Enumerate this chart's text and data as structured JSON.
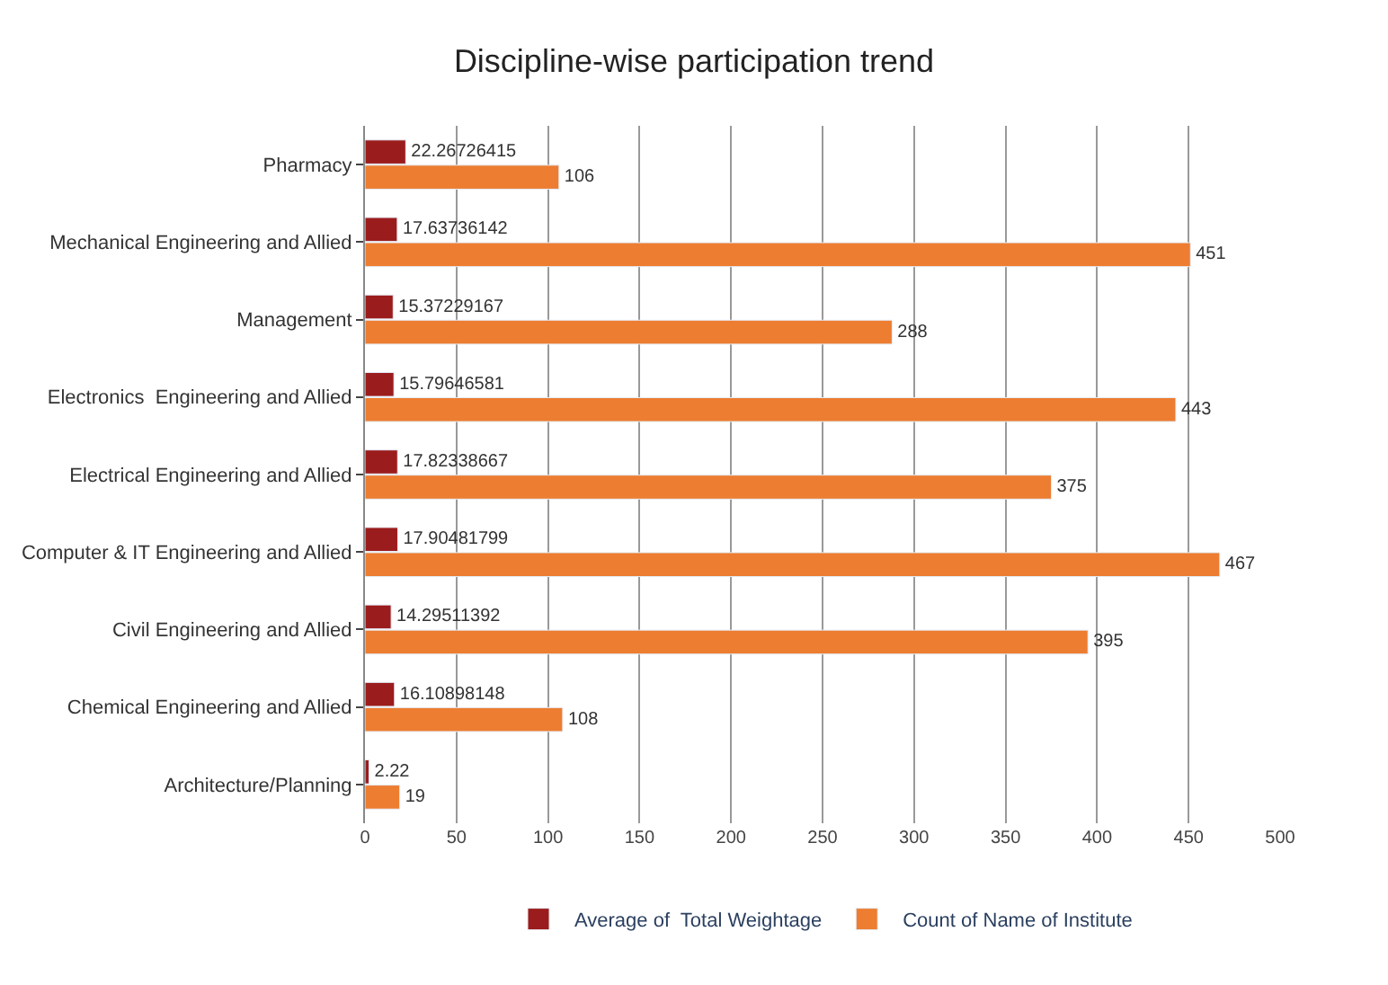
{
  "chart_data": {
    "type": "bar",
    "orientation": "horizontal",
    "title": "Discipline-wise participation trend",
    "categories": [
      "Pharmacy",
      "Mechanical Engineering and Allied",
      "Management",
      "Electronics  Engineering and Allied",
      "Electrical Engineering and Allied",
      "Computer & IT Engineering and Allied",
      "Civil Engineering and Allied",
      "Chemical Engineering and Allied",
      "Architecture/Planning"
    ],
    "series": [
      {
        "name": "Average of  Total Weightage",
        "color": "#9b1c1c",
        "values": [
          22.26726415,
          17.63736142,
          15.37229167,
          15.79646581,
          17.82338667,
          17.90481799,
          14.29511392,
          16.10898148,
          2.22
        ]
      },
      {
        "name": "Count of Name of Institute",
        "color": "#ed7d31",
        "values": [
          106,
          451,
          288,
          443,
          375,
          467,
          395,
          108,
          19
        ]
      }
    ],
    "xlim": [
      0,
      500
    ],
    "xticks": [
      0,
      50,
      100,
      150,
      200,
      250,
      300,
      350,
      400,
      450,
      500
    ],
    "grid": "x",
    "legend": "bottom",
    "data_labels": true
  }
}
